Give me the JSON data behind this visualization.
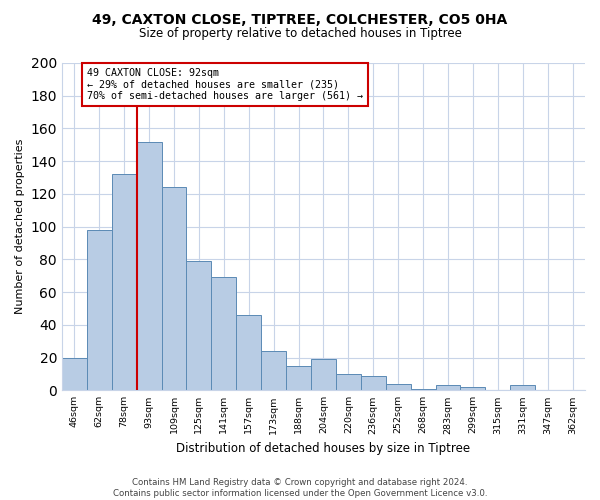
{
  "title": "49, CAXTON CLOSE, TIPTREE, COLCHESTER, CO5 0HA",
  "subtitle": "Size of property relative to detached houses in Tiptree",
  "xlabel": "Distribution of detached houses by size in Tiptree",
  "ylabel": "Number of detached properties",
  "bar_labels": [
    "46sqm",
    "62sqm",
    "78sqm",
    "93sqm",
    "109sqm",
    "125sqm",
    "141sqm",
    "157sqm",
    "173sqm",
    "188sqm",
    "204sqm",
    "220sqm",
    "236sqm",
    "252sqm",
    "268sqm",
    "283sqm",
    "299sqm",
    "315sqm",
    "331sqm",
    "347sqm",
    "362sqm"
  ],
  "bar_values": [
    20,
    98,
    132,
    152,
    124,
    79,
    69,
    46,
    24,
    15,
    19,
    10,
    9,
    4,
    1,
    3,
    2,
    0,
    3,
    0,
    0
  ],
  "bar_color": "#b8cce4",
  "bar_edge_color": "#5b8ab5",
  "ylim": [
    0,
    200
  ],
  "yticks": [
    0,
    20,
    40,
    60,
    80,
    100,
    120,
    140,
    160,
    180,
    200
  ],
  "annotation_title": "49 CAXTON CLOSE: 92sqm",
  "annotation_line1": "← 29% of detached houses are smaller (235)",
  "annotation_line2": "70% of semi-detached houses are larger (561) →",
  "vline_color": "#cc0000",
  "annotation_box_edge_color": "#cc0000",
  "footer_line1": "Contains HM Land Registry data © Crown copyright and database right 2024.",
  "footer_line2": "Contains public sector information licensed under the Open Government Licence v3.0.",
  "background_color": "#ffffff",
  "grid_color": "#c8d4e8"
}
